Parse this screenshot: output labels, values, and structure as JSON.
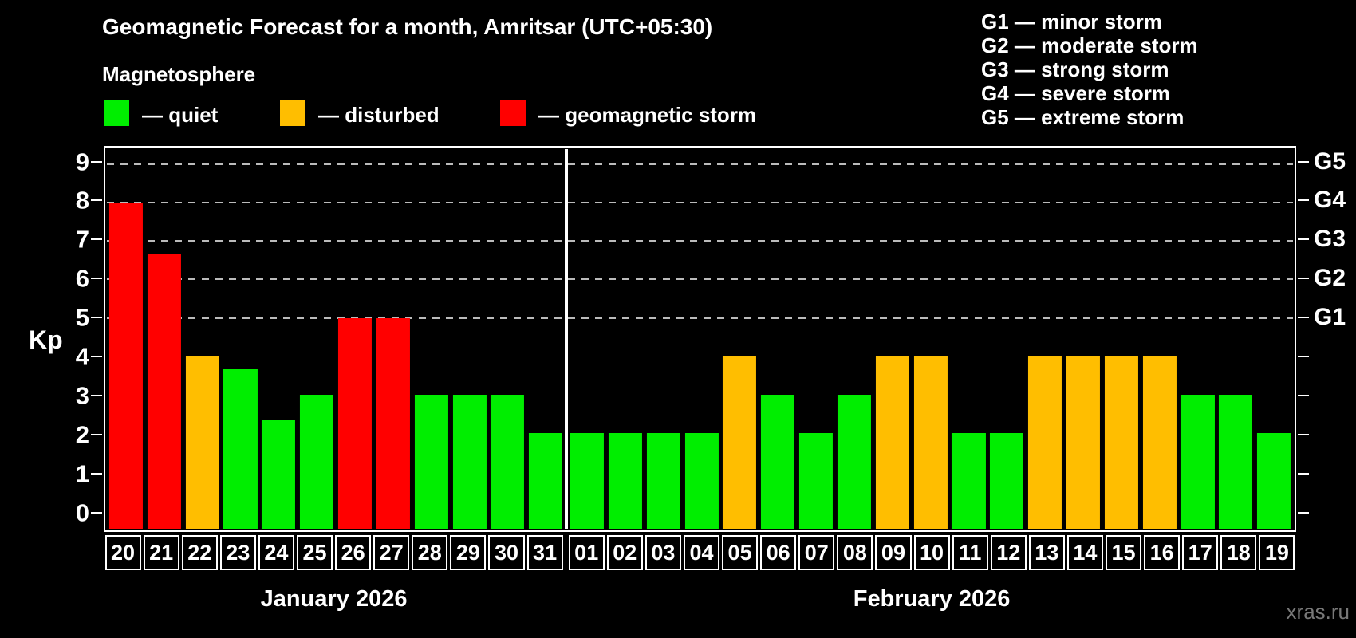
{
  "title": "Geomagnetic Forecast for a month, Amritsar (UTC+05:30)",
  "subtitle": "Magnetosphere",
  "legend": {
    "quiet": "— quiet",
    "disturbed": "— disturbed",
    "storm": "— geomagnetic storm"
  },
  "g_legend": [
    "G1 — minor storm",
    "G2 — moderate storm",
    "G3 — strong storm",
    "G4 — severe storm",
    "G5 — extreme storm"
  ],
  "watermark": "xras.ru",
  "colors": {
    "quiet": "#00ee00",
    "disturbed": "#ffbe00",
    "storm": "#ff0000",
    "background": "#000000",
    "grid": "#bbbbbb",
    "axis": "#ffffff",
    "text": "#ffffff",
    "watermark": "#787878"
  },
  "chart_data": {
    "type": "bar",
    "title": "Geomagnetic Forecast for a month, Amritsar (UTC+05:30)",
    "ylabel": "Kp",
    "ylim": [
      -0.5,
      9.4
    ],
    "yticks": [
      0,
      1,
      2,
      3,
      4,
      5,
      6,
      7,
      8,
      9
    ],
    "gridlines_at": [
      5,
      6,
      7,
      8,
      9
    ],
    "grid_style": "dashed",
    "grid": true,
    "legend_position": "top",
    "right_axis_labels": {
      "5": "G1",
      "6": "G2",
      "7": "G3",
      "8": "G4",
      "9": "G5"
    },
    "groups": [
      {
        "month": "January 2026",
        "days": [
          "20",
          "21",
          "22",
          "23",
          "24",
          "25",
          "26",
          "27",
          "28",
          "29",
          "30",
          "31"
        ],
        "values": [
          8,
          6.67,
          4,
          3.67,
          2.33,
          3,
          5,
          5,
          3,
          3,
          3,
          2
        ],
        "status": [
          "storm",
          "storm",
          "disturbed",
          "quiet",
          "quiet",
          "quiet",
          "storm",
          "storm",
          "quiet",
          "quiet",
          "quiet",
          "quiet"
        ]
      },
      {
        "month": "February 2026",
        "days": [
          "01",
          "02",
          "03",
          "04",
          "05",
          "06",
          "07",
          "08",
          "09",
          "10",
          "11",
          "12",
          "13",
          "14",
          "15",
          "16",
          "17",
          "18",
          "19"
        ],
        "values": [
          2,
          2,
          2,
          2,
          4,
          3,
          2,
          3,
          4,
          4,
          2,
          2,
          4,
          4,
          4,
          4,
          3,
          3,
          2
        ],
        "status": [
          "quiet",
          "quiet",
          "quiet",
          "quiet",
          "disturbed",
          "quiet",
          "quiet",
          "quiet",
          "disturbed",
          "disturbed",
          "quiet",
          "quiet",
          "disturbed",
          "disturbed",
          "disturbed",
          "disturbed",
          "quiet",
          "quiet",
          "quiet"
        ]
      }
    ]
  }
}
